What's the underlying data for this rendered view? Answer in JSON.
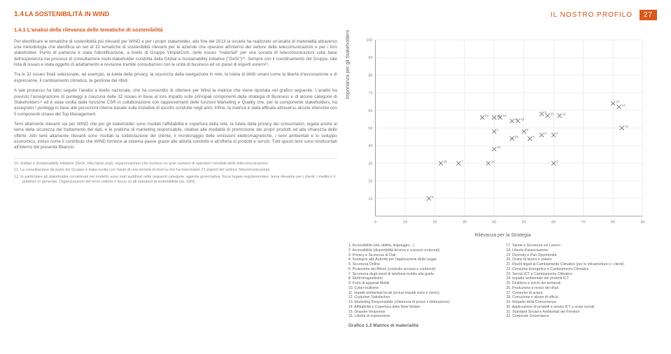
{
  "header": {
    "section_label": "IL NOSTRO PROFILO",
    "page_number": "27"
  },
  "section": {
    "num": "1.4",
    "title": "LA SOSTENIBILITÀ IN WIND",
    "sub_num": "1.4.1",
    "sub_title": "L'analisi della rilevanza delle tematiche di sostenibilità"
  },
  "paragraphs": [
    "Per identificare le tematiche di sostenibilità più rilevanti per WIND e per i propri stakeholder, alla fine del 2013 la società ha realizzato un'analisi di materialità attraverso una metodologia che identifica un set di 32 tematiche di sostenibilità rilevanti per le aziende che operano all'interno del settore delle telecomunicazioni e per i loro stakeholder. Punto di partenza è stata l'identificazione, a livello di Gruppo VimpelCom, delle issues \"materiali\" per una società di telecomunicazioni sulla base dell'esperienza nei processi di consultazione multi-stakeholder condotta dalla Global e-Sustainability Initiative (\"GeSI\")¹⁰. Sempre con il coordinamento del Gruppo, tale lista di issues è stata oggetto di adattamento e revisione tramite consultazioni con le unità di business ed un panel di esperti esterni¹¹.",
    "Tra le 32 issues finali selezionate, ad esempio, la tutela della privacy, la sicurezza della navigazione in rete, la tutela di diritti umani come la libertà d'associazione e di espressione, il cambiamento climatico, la gestione dei rifiuti.",
    "A tale processo ha fatto seguito l'analisi a livello nazionale, che ha consentito di ottenere per Wind la matrice che viene riportata nel grafico seguente. L'analisi ha previsto l'assegnazione di punteggi a ciascuna delle 32 issues in base al loro impatto sulle principali componenti della strategia di Business e di alcune categorie di Stakeholders¹² ed è stata svolta dalla funzione CSR in collaborazione con rappresentanti delle funzioni Marketing e Quality che, per la componente stakeholders, ha assegnato i punteggi in base alle percezioni interne basate sulle iniziative di ascolto condotte negli anni. Infine, la matrice è stata affinata attraverso alcune interviste con 5 componenti chiave del Top Management.",
    "Temi altamente rilevanti sia per WIND che per gli stakeholder sono risultati l'affidabilità e copertura della rete, la tutela della privacy dei consumatori, legata anche al tema della sicurezza del trattamento dei dati, e le pratiche di marketing responsabile, relative alle modalità di promozione dei propri prodotti ed alla chiarezza delle offerte. Altri temi altamente rilevanti sono risultati la soddisfazione del cliente, il monitoraggio delle emissioni elettromagnetiche, i temi ambientali e lo sviluppo economico, inteso come il contributo che WIND fornisce al sistema paese grazie alle attività condotte e all'offerta di prodotti e servizi. Tutti questi temi sono rendicontati all'interno del presente Bilancio."
  ],
  "footnotes": [
    "10.  Global e-Sustainability Initiative (GeSI, http://gesi.org/), organizzazione che riunisce un gran numero di operatori mondiali delle telecomunicazioni.",
    "11.  La consultazione da parte del Gruppo è stata svolta con l'aiuto di una società di ricerca che ha intervistato 21 esperti del settore Telecomunicazioni.",
    "12.  In particolare gli stakeholder considerati nel modello sono stati suddivisi nelle seguenti categorie: agenda governativa, focus legale-regolamentare, tema rilevante per i clienti, i media e il pubblico in generale, Organizzazioni del terzo settore e focus su gli standard di sostenibilità (es. GRI)."
  ],
  "chart": {
    "type": "scatter",
    "xlabel": "Rilevanza per la Strategia",
    "ylabel": "Importanza per gli Stakeholders",
    "xlim": [
      0,
      90
    ],
    "ylim": [
      0,
      100
    ],
    "xtick_step": 10,
    "ytick_step": 10,
    "axis_fontsize": 6,
    "tick_fontsize": 5.5,
    "point_label_fontsize": 4.5,
    "grid_color": "#dddddd",
    "axis_color": "#888888",
    "background_color": "#ffffff",
    "point_marker": "x",
    "point_color": "#7a7a7a",
    "point_size": 3,
    "points": [
      {
        "id": "1",
        "x": 40,
        "y": 48
      },
      {
        "id": "2",
        "x": 60,
        "y": 46
      },
      {
        "id": "3",
        "x": 56,
        "y": 58
      },
      {
        "id": "4",
        "x": 52,
        "y": 44
      },
      {
        "id": "5",
        "x": 60,
        "y": 30
      },
      {
        "id": "6",
        "x": 50,
        "y": 48
      },
      {
        "id": "7",
        "x": 28,
        "y": 30
      },
      {
        "id": "8",
        "x": 56,
        "y": 46
      },
      {
        "id": "9",
        "x": 18,
        "y": 10
      },
      {
        "id": "10",
        "x": 40,
        "y": 38
      },
      {
        "id": "11",
        "x": 46,
        "y": 54
      },
      {
        "id": "12",
        "x": 36,
        "y": 56
      },
      {
        "id": "13",
        "x": 80,
        "y": 64
      },
      {
        "id": "13b",
        "x": 83,
        "y": 50
      },
      {
        "id": "14",
        "x": 82,
        "y": 62
      },
      {
        "id": "15",
        "x": 40,
        "y": 56
      },
      {
        "id": "16",
        "x": 38,
        "y": 30
      },
      {
        "id": "21",
        "x": 46,
        "y": 44
      },
      {
        "id": "22",
        "x": 62,
        "y": 57
      },
      {
        "id": "23",
        "x": 48,
        "y": 54
      },
      {
        "id": "24",
        "x": 42,
        "y": 56
      },
      {
        "id": "25",
        "x": 58,
        "y": 57
      },
      {
        "id": "26",
        "x": 22,
        "y": 30
      }
    ],
    "caption": "Grafico 1.2 Matrice di materialità"
  },
  "legend_items": [
    "1. Accessibilità (età, abilità, linguaggio…)",
    "2. Accessibilità (disponibilità tecnica e a prezzi contenuti)",
    "3. Privacy e Sicurezza di Dati",
    "4. Sostegno alle Autorità per l'applicazione della Legge",
    "5. Sicurezza Online",
    "6. Protezione dei Minori (controllo accessi e contenuti)",
    "7. Sicurezza degli utenti di telefonia mobile alla guida",
    "8. Elettromagnetismo",
    "9. Furto di apparati Mobili",
    "10. Cyber-bullismo",
    "11. Impatti ambientali locali (inclusi impatti visivi e riciclo)",
    "12. Customer Satisfaction",
    "13. Marketing Responsabile (chiarezza di prezzi e fatturazione)",
    "14. Affidabilità e Copertura della Rete Mobile",
    "15. Disaster Response",
    "16. Libertà di espressione",
    "17. Salute e Sicurezza sul Lavoro",
    "18. Libertà d'associazione",
    "19. Diversity e Pari Opportunità",
    "20. Orario di lavoro e salario",
    "21. Rischi legati al Cambiamento Climatico (per le infrastrutture e i clienti)",
    "22. Consumo Energetico e Cambiamento Climatico",
    "23. Servizi ICT e Cambiamento Climatico",
    "24. Impatto ambientale dei prodotti ICT",
    "25. Riutilizzo e riciclo dei terminali",
    "26. Produzione e riciclo dei rifiuti",
    "27. Consumo di acqua",
    "28. Corruzione e abuso di ufficio",
    "29. Rispetto della Concorrenza",
    "30. Applicazione di prodotti e servizi ICT a scopi sociali",
    "31. Standard Sociali e Ambientali dei Fornitori",
    "32. Corporate Governance"
  ]
}
